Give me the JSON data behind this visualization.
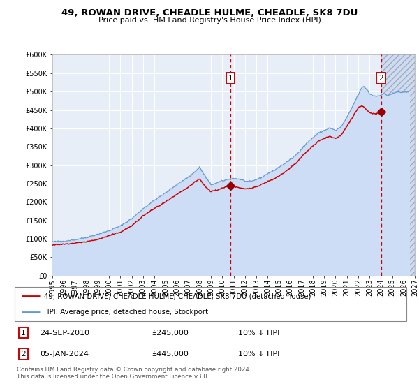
{
  "title": "49, ROWAN DRIVE, CHEADLE HULME, CHEADLE, SK8 7DU",
  "subtitle": "Price paid vs. HM Land Registry's House Price Index (HPI)",
  "legend_line1": "49, ROWAN DRIVE, CHEADLE HULME, CHEADLE, SK8 7DU (detached house)",
  "legend_line2": "HPI: Average price, detached house, Stockport",
  "footnote": "Contains HM Land Registry data © Crown copyright and database right 2024.\nThis data is licensed under the Open Government Licence v3.0.",
  "annotation1_date": "24-SEP-2010",
  "annotation1_price": "£245,000",
  "annotation1_hpi": "10% ↓ HPI",
  "annotation2_date": "05-JAN-2024",
  "annotation2_price": "£445,000",
  "annotation2_hpi": "10% ↓ HPI",
  "sale1_x": 2010.73,
  "sale1_y": 245000,
  "sale2_x": 2024.01,
  "sale2_y": 445000,
  "ylim": [
    0,
    600000
  ],
  "xlim_start": 1995,
  "xlim_end": 2027,
  "hpi_color": "#6699cc",
  "hpi_fill_color": "#ccddf5",
  "red_line_color": "#cc0000",
  "sale_marker_color": "#990000",
  "vline_color": "#cc0000",
  "plot_bg": "#e8eef8",
  "grid_color": "#ffffff",
  "hatch_color": "#aabbdd",
  "hpi_keypoints_x": [
    1995.0,
    1996.0,
    1997.0,
    1998.0,
    1999.0,
    2000.0,
    2001.0,
    2002.0,
    2002.5,
    2003.0,
    2004.0,
    2005.0,
    2006.0,
    2007.0,
    2007.5,
    2008.0,
    2008.5,
    2009.0,
    2009.5,
    2010.0,
    2010.5,
    2011.0,
    2011.5,
    2012.0,
    2012.5,
    2013.0,
    2013.5,
    2014.0,
    2014.5,
    2015.0,
    2015.5,
    2016.0,
    2016.5,
    2017.0,
    2017.5,
    2018.0,
    2018.5,
    2019.0,
    2019.5,
    2020.0,
    2020.5,
    2021.0,
    2021.5,
    2022.0,
    2022.3,
    2022.5,
    2022.8,
    2023.0,
    2023.3,
    2023.6,
    2024.0,
    2024.3,
    2024.6,
    2025.0,
    2025.5,
    2026.0,
    2026.5
  ],
  "hpi_keypoints_y": [
    92000,
    94000,
    98000,
    104000,
    112000,
    122000,
    135000,
    155000,
    168000,
    182000,
    205000,
    225000,
    248000,
    268000,
    280000,
    295000,
    270000,
    248000,
    252000,
    258000,
    262000,
    265000,
    263000,
    258000,
    255000,
    262000,
    268000,
    278000,
    285000,
    295000,
    305000,
    315000,
    328000,
    345000,
    362000,
    375000,
    388000,
    395000,
    402000,
    395000,
    405000,
    430000,
    460000,
    492000,
    510000,
    515000,
    505000,
    495000,
    490000,
    488000,
    492000,
    495000,
    490000,
    495000,
    500000,
    498000,
    500000
  ],
  "red_keypoints_x": [
    1995.0,
    1996.0,
    1997.0,
    1998.0,
    1999.0,
    2000.0,
    2001.0,
    2002.0,
    2002.5,
    2003.0,
    2004.0,
    2005.0,
    2006.0,
    2007.0,
    2007.5,
    2008.0,
    2008.5,
    2009.0,
    2009.5,
    2010.0,
    2010.5,
    2010.73,
    2011.0,
    2011.5,
    2012.0,
    2012.5,
    2013.0,
    2013.5,
    2014.0,
    2014.5,
    2015.0,
    2015.5,
    2016.0,
    2016.5,
    2017.0,
    2017.5,
    2018.0,
    2018.5,
    2019.0,
    2019.5,
    2020.0,
    2020.5,
    2021.0,
    2021.5,
    2022.0,
    2022.3,
    2022.5,
    2022.8,
    2023.0,
    2023.3,
    2023.6,
    2024.0,
    2024.3
  ],
  "red_keypoints_y": [
    83000,
    85000,
    88000,
    92000,
    98000,
    108000,
    118000,
    135000,
    148000,
    162000,
    182000,
    200000,
    220000,
    240000,
    252000,
    262000,
    242000,
    228000,
    232000,
    238000,
    242000,
    245000,
    242000,
    238000,
    235000,
    236000,
    242000,
    248000,
    255000,
    262000,
    270000,
    280000,
    292000,
    305000,
    322000,
    338000,
    352000,
    365000,
    372000,
    378000,
    372000,
    382000,
    405000,
    430000,
    455000,
    460000,
    458000,
    448000,
    442000,
    440000,
    438000,
    445000,
    442000
  ]
}
